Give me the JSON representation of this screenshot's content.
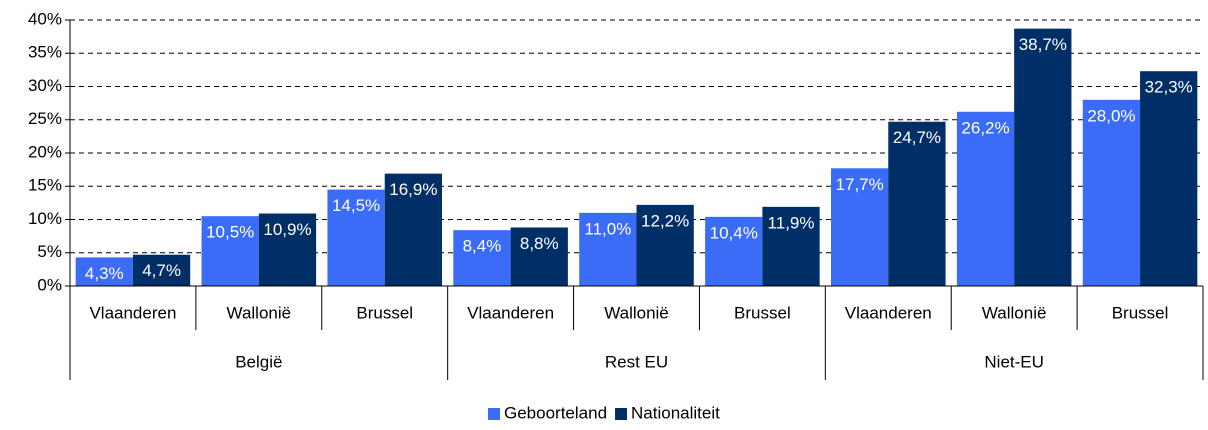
{
  "chart_data": {
    "type": "bar",
    "groups": [
      "België",
      "Rest EU",
      "Niet-EU"
    ],
    "categories": [
      "Vlaanderen",
      "Wallonië",
      "Brussel",
      "Vlaanderen",
      "Wallonië",
      "Brussel",
      "Vlaanderen",
      "Wallonië",
      "Brussel"
    ],
    "series": [
      {
        "name": "Geboorteland",
        "color": "#3a6cf8",
        "values": [
          4.3,
          10.5,
          14.5,
          8.4,
          11.0,
          10.4,
          17.7,
          26.2,
          28.0
        ],
        "value_labels": [
          "4,3%",
          "10,5%",
          "14,5%",
          "8,4%",
          "11,0%",
          "10,4%",
          "17,7%",
          "26,2%",
          "28,0%"
        ]
      },
      {
        "name": "Nationaliteit",
        "color": "#002e66",
        "values": [
          4.7,
          10.9,
          16.9,
          8.8,
          12.2,
          11.9,
          24.7,
          38.7,
          32.3
        ],
        "value_labels": [
          "4,7%",
          "10,9%",
          "16,9%",
          "8,8%",
          "12,2%",
          "11,9%",
          "24,7%",
          "38,7%",
          "32,3%"
        ]
      }
    ],
    "ylim": [
      0,
      40
    ],
    "yticks": [
      {
        "value": 0,
        "label": "0%"
      },
      {
        "value": 5,
        "label": "5%"
      },
      {
        "value": 10,
        "label": "10%"
      },
      {
        "value": 15,
        "label": "15%"
      },
      {
        "value": 20,
        "label": "20%"
      },
      {
        "value": 25,
        "label": "25%"
      },
      {
        "value": 30,
        "label": "30%"
      },
      {
        "value": 35,
        "label": "35%"
      },
      {
        "value": 40,
        "label": "40%"
      }
    ],
    "grid": true,
    "legend": "bottom"
  }
}
